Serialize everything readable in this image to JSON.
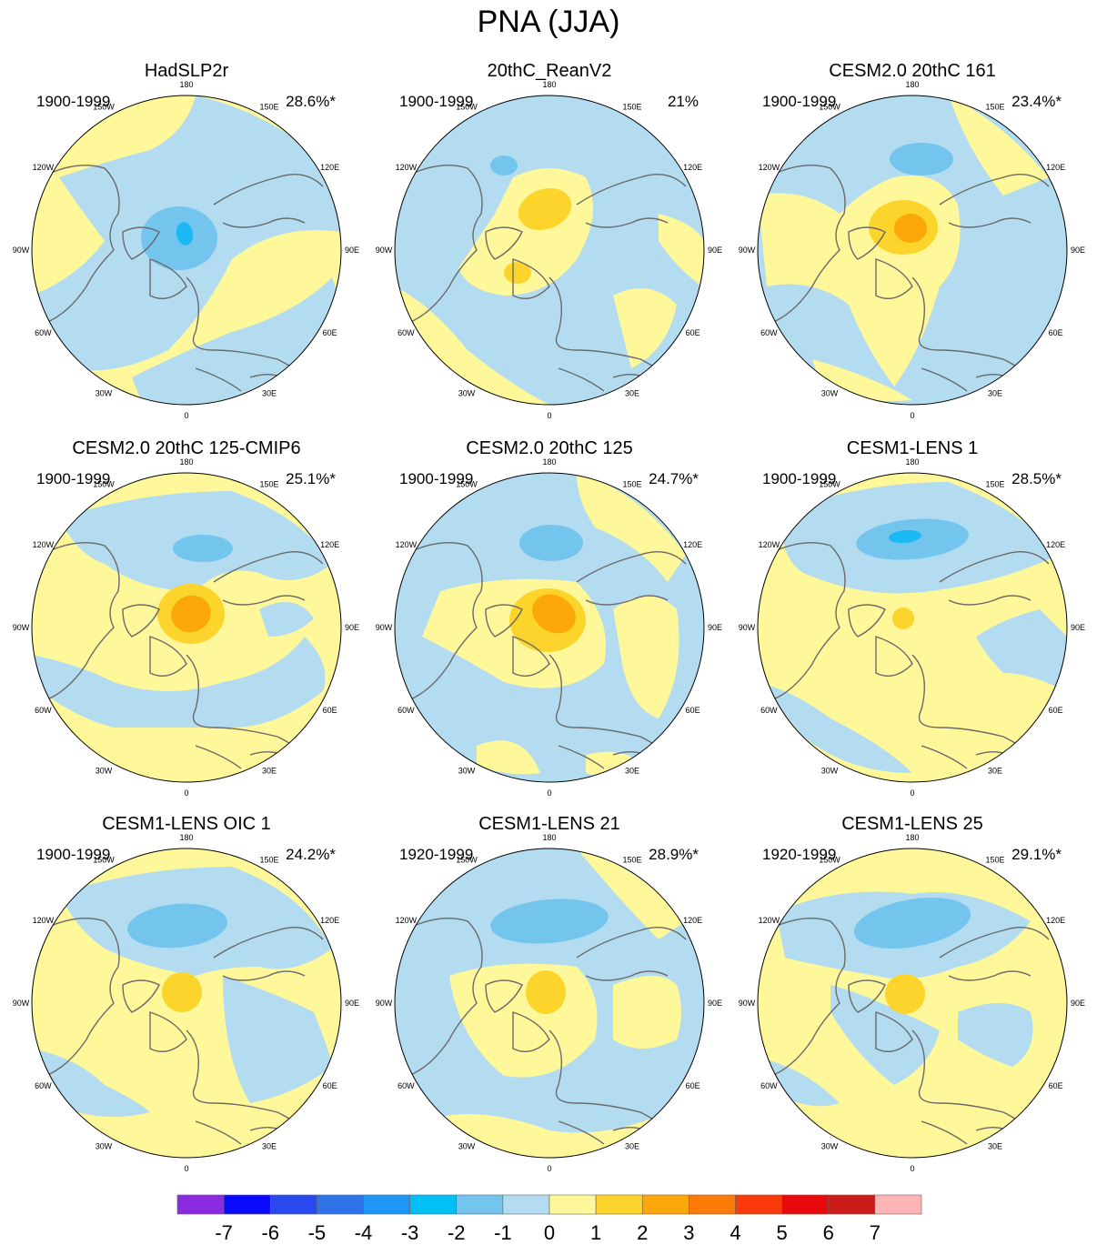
{
  "title": "PNA (JJA)",
  "palette": {
    "neg1": "#b3dcf0",
    "neg2": "#74c5ee",
    "neg3": "#1bb8f4",
    "neg4": "#2d93e8",
    "pos1": "#fef89a",
    "pos2": "#fdd42c",
    "pos3": "#fca70a",
    "ocean_line": "#6a6a6a"
  },
  "lon_labels": [
    "180",
    "150E",
    "120E",
    "90E",
    "60E",
    "30E",
    "0",
    "30W",
    "60W",
    "90W",
    "120W",
    "150W"
  ],
  "panels": [
    {
      "title": "HadSLP2r",
      "period": "1900-1999",
      "pct": "28.6%*"
    },
    {
      "title": "20thC_ReanV2",
      "period": "1900-1999",
      "pct": "21%"
    },
    {
      "title": "CESM2.0 20thC 161",
      "period": "1900-1999",
      "pct": "23.4%*"
    },
    {
      "title": "CESM2.0 20thC 125-CMIP6",
      "period": "1900-1999",
      "pct": "25.1%*"
    },
    {
      "title": "CESM2.0 20thC 125",
      "period": "1900-1999",
      "pct": "24.7%*"
    },
    {
      "title": "CESM1-LENS 1",
      "period": "1900-1999",
      "pct": "28.5%*"
    },
    {
      "title": "CESM1-LENS OIC 1",
      "period": "1900-1999",
      "pct": "24.2%*"
    },
    {
      "title": "CESM1-LENS 21",
      "period": "1920-1999",
      "pct": "28.9%*"
    },
    {
      "title": "CESM1-LENS 25",
      "period": "1920-1999",
      "pct": "29.1%*"
    }
  ],
  "chart_data": {
    "type": "heatmap",
    "projection": "north polar stereographic",
    "title": "PNA (JJA)",
    "colorbar": {
      "levels": [
        "-7",
        "-6",
        "-5",
        "-4",
        "-3",
        "-2",
        "-1",
        "0",
        "1",
        "2",
        "3",
        "4",
        "5",
        "6",
        "7"
      ],
      "colors": [
        "#8a2be2",
        "#0a0aff",
        "#2a48f0",
        "#2e74e8",
        "#1e96f5",
        "#00bff5",
        "#74c5ee",
        "#b3dcf0",
        "#fef89a",
        "#fdd42c",
        "#fca70a",
        "#fc7a08",
        "#fa3a0a",
        "#e80a0a",
        "#cc1a1a",
        "#fcb4b4"
      ]
    },
    "series": [
      {
        "name": "HadSLP2r",
        "period": "1900-1999",
        "explained_variance": "28.6%*",
        "center_anomaly": -3
      },
      {
        "name": "20thC_ReanV2",
        "period": "1900-1999",
        "explained_variance": "21%",
        "center_anomaly": 2
      },
      {
        "name": "CESM2.0 20thC 161",
        "period": "1900-1999",
        "explained_variance": "23.4%*",
        "center_anomaly": 3
      },
      {
        "name": "CESM2.0 20thC 125-CMIP6",
        "period": "1900-1999",
        "explained_variance": "25.1%*",
        "center_anomaly": 3
      },
      {
        "name": "CESM2.0 20thC 125",
        "period": "1900-1999",
        "explained_variance": "24.7%*",
        "center_anomaly": 3
      },
      {
        "name": "CESM1-LENS 1",
        "period": "1900-1999",
        "explained_variance": "28.5%*",
        "center_anomaly": 2
      },
      {
        "name": "CESM1-LENS OIC 1",
        "period": "1900-1999",
        "explained_variance": "24.2%*",
        "center_anomaly": 2
      },
      {
        "name": "CESM1-LENS 21",
        "period": "1920-1999",
        "explained_variance": "28.9%*",
        "center_anomaly": 2
      },
      {
        "name": "CESM1-LENS 25",
        "period": "1920-1999",
        "explained_variance": "29.1%*",
        "center_anomaly": 2
      }
    ]
  }
}
